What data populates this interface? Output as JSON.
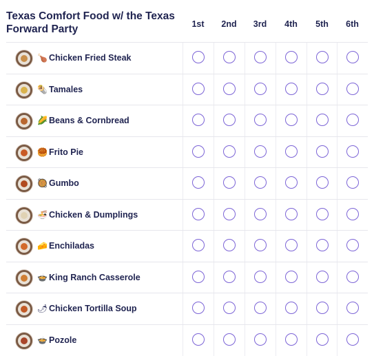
{
  "title": "Texas Comfort Food w/ the Texas Forward Party",
  "columns": [
    "1st",
    "2nd",
    "3rd",
    "4th",
    "5th",
    "6th"
  ],
  "rows": [
    {
      "label": "Chicken Fried Steak",
      "emoji": "🍗",
      "icon": "chicken-fried-steak-icon",
      "thumb_color": "#c98f4a"
    },
    {
      "label": "Tamales",
      "emoji": "🌯",
      "icon": "tamales-icon",
      "thumb_color": "#d9b24c"
    },
    {
      "label": "Beans & Cornbread",
      "emoji": "🌽",
      "icon": "beans-cornbread-icon",
      "thumb_color": "#b8662e"
    },
    {
      "label": "Frito Pie",
      "emoji": "🥮",
      "icon": "frito-pie-icon",
      "thumb_color": "#c95a25"
    },
    {
      "label": "Gumbo",
      "emoji": "🥘",
      "icon": "gumbo-icon",
      "thumb_color": "#b14a1f"
    },
    {
      "label": "Chicken & Dumplings",
      "emoji": "🍜",
      "icon": "chicken-dumplings-icon",
      "thumb_color": "#e0d2b4"
    },
    {
      "label": "Enchiladas",
      "emoji": "🧀",
      "icon": "enchiladas-icon",
      "thumb_color": "#d36a2a"
    },
    {
      "label": "King Ranch Casserole",
      "emoji": "🍲",
      "icon": "king-ranch-casserole-icon",
      "thumb_color": "#cf7e34"
    },
    {
      "label": "Chicken Tortilla Soup",
      "emoji": "🌶",
      "icon": "chicken-tortilla-soup-icon",
      "thumb_color": "#c25a26"
    },
    {
      "label": "Pozole",
      "emoji": "🍲",
      "icon": "pozole-icon",
      "thumb_color": "#a8452a"
    }
  ],
  "colors": {
    "text": "#1f2350",
    "radio_border": "#7b63d6",
    "divider": "#e6e6ec"
  }
}
